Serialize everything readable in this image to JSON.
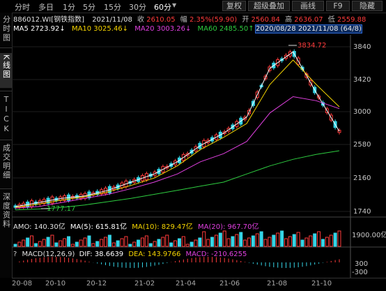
{
  "toolbar": {
    "tabs": [
      "分时",
      "多日",
      "1分",
      "5分",
      "15分",
      "30分",
      "60分"
    ],
    "active_tab": "60分",
    "right_buttons": [
      "复权",
      "超级叠加",
      "画线",
      "F9",
      "隐藏"
    ]
  },
  "sidebar": {
    "items": [
      "分时图",
      "K线图",
      "TICK",
      "成交明细",
      "深度资料"
    ],
    "active": "K线图"
  },
  "quote": {
    "code": "886012.WI[钢铁指数]",
    "date": "2021/11/08",
    "close_label": "收",
    "close": "2610.05",
    "change_label": "幅",
    "change": "2.35%(59.90)",
    "open_label": "开",
    "open": "2560.84",
    "high_label": "高",
    "high": "2636.07",
    "low_label": "低",
    "low": "2559.88"
  },
  "ma_line": {
    "ma5": "MA5 2723.92↓",
    "ma10": "MA10 3025.46↓",
    "ma20": "MA20 3003.26↓",
    "ma60": "MA60 2485.50↑",
    "overlay": "2020/08/28 2021/11/08 (64/8)"
  },
  "price_axis": {
    "ticks": [
      "3840",
      "3420",
      "3000",
      "2580",
      "2160",
      "1740"
    ],
    "max_label": "3834.72",
    "min_label": "1777.17"
  },
  "amo": {
    "label": "AMO: 140.30亿",
    "ma5": "MA(5): 615.81亿",
    "ma10": "MA(10): 829.47亿",
    "ma20": "MA(20): 967.70亿",
    "axis": "1900.00亿"
  },
  "macd": {
    "prefix": "?",
    "name": "MACD(12,26,9)",
    "dif": "DIF: 38.6639",
    "dea": "DEA: 143.9766",
    "macd": "MACD: -210.6255",
    "axis_top": "300",
    "axis_bottom": "-300"
  },
  "x_axis": [
    "20-08",
    "20-10",
    "20-12",
    "21-02",
    "21-04",
    "21-06",
    "21-08",
    "21-10"
  ],
  "colors": {
    "up": "#ff3b3b",
    "down": "#35d4e6",
    "ma5": "#ffffff",
    "ma10": "#f5d400",
    "ma20": "#e040e0",
    "ma60": "#2ecc40"
  },
  "chart_data": {
    "type": "line",
    "title": "",
    "y_range": [
      1740,
      3840
    ],
    "series": [
      {
        "name": "MA5",
        "values": [
          1800,
          1850,
          1900,
          1930,
          2000,
          2100,
          2200,
          2350,
          2550,
          2700,
          2900,
          3500,
          3700,
          3200,
          2724
        ]
      },
      {
        "name": "MA10",
        "values": [
          1790,
          1830,
          1880,
          1920,
          1980,
          2060,
          2150,
          2300,
          2500,
          2650,
          2820,
          3300,
          3600,
          3300,
          3025
        ]
      },
      {
        "name": "MA20",
        "values": [
          1780,
          1800,
          1850,
          1900,
          1950,
          2020,
          2100,
          2200,
          2350,
          2450,
          2600,
          2950,
          3150,
          3100,
          3003
        ]
      },
      {
        "name": "MA60",
        "values": [
          1760,
          1770,
          1790,
          1820,
          1860,
          1900,
          1950,
          2000,
          2050,
          2100,
          2200,
          2300,
          2380,
          2440,
          2486
        ]
      }
    ]
  }
}
